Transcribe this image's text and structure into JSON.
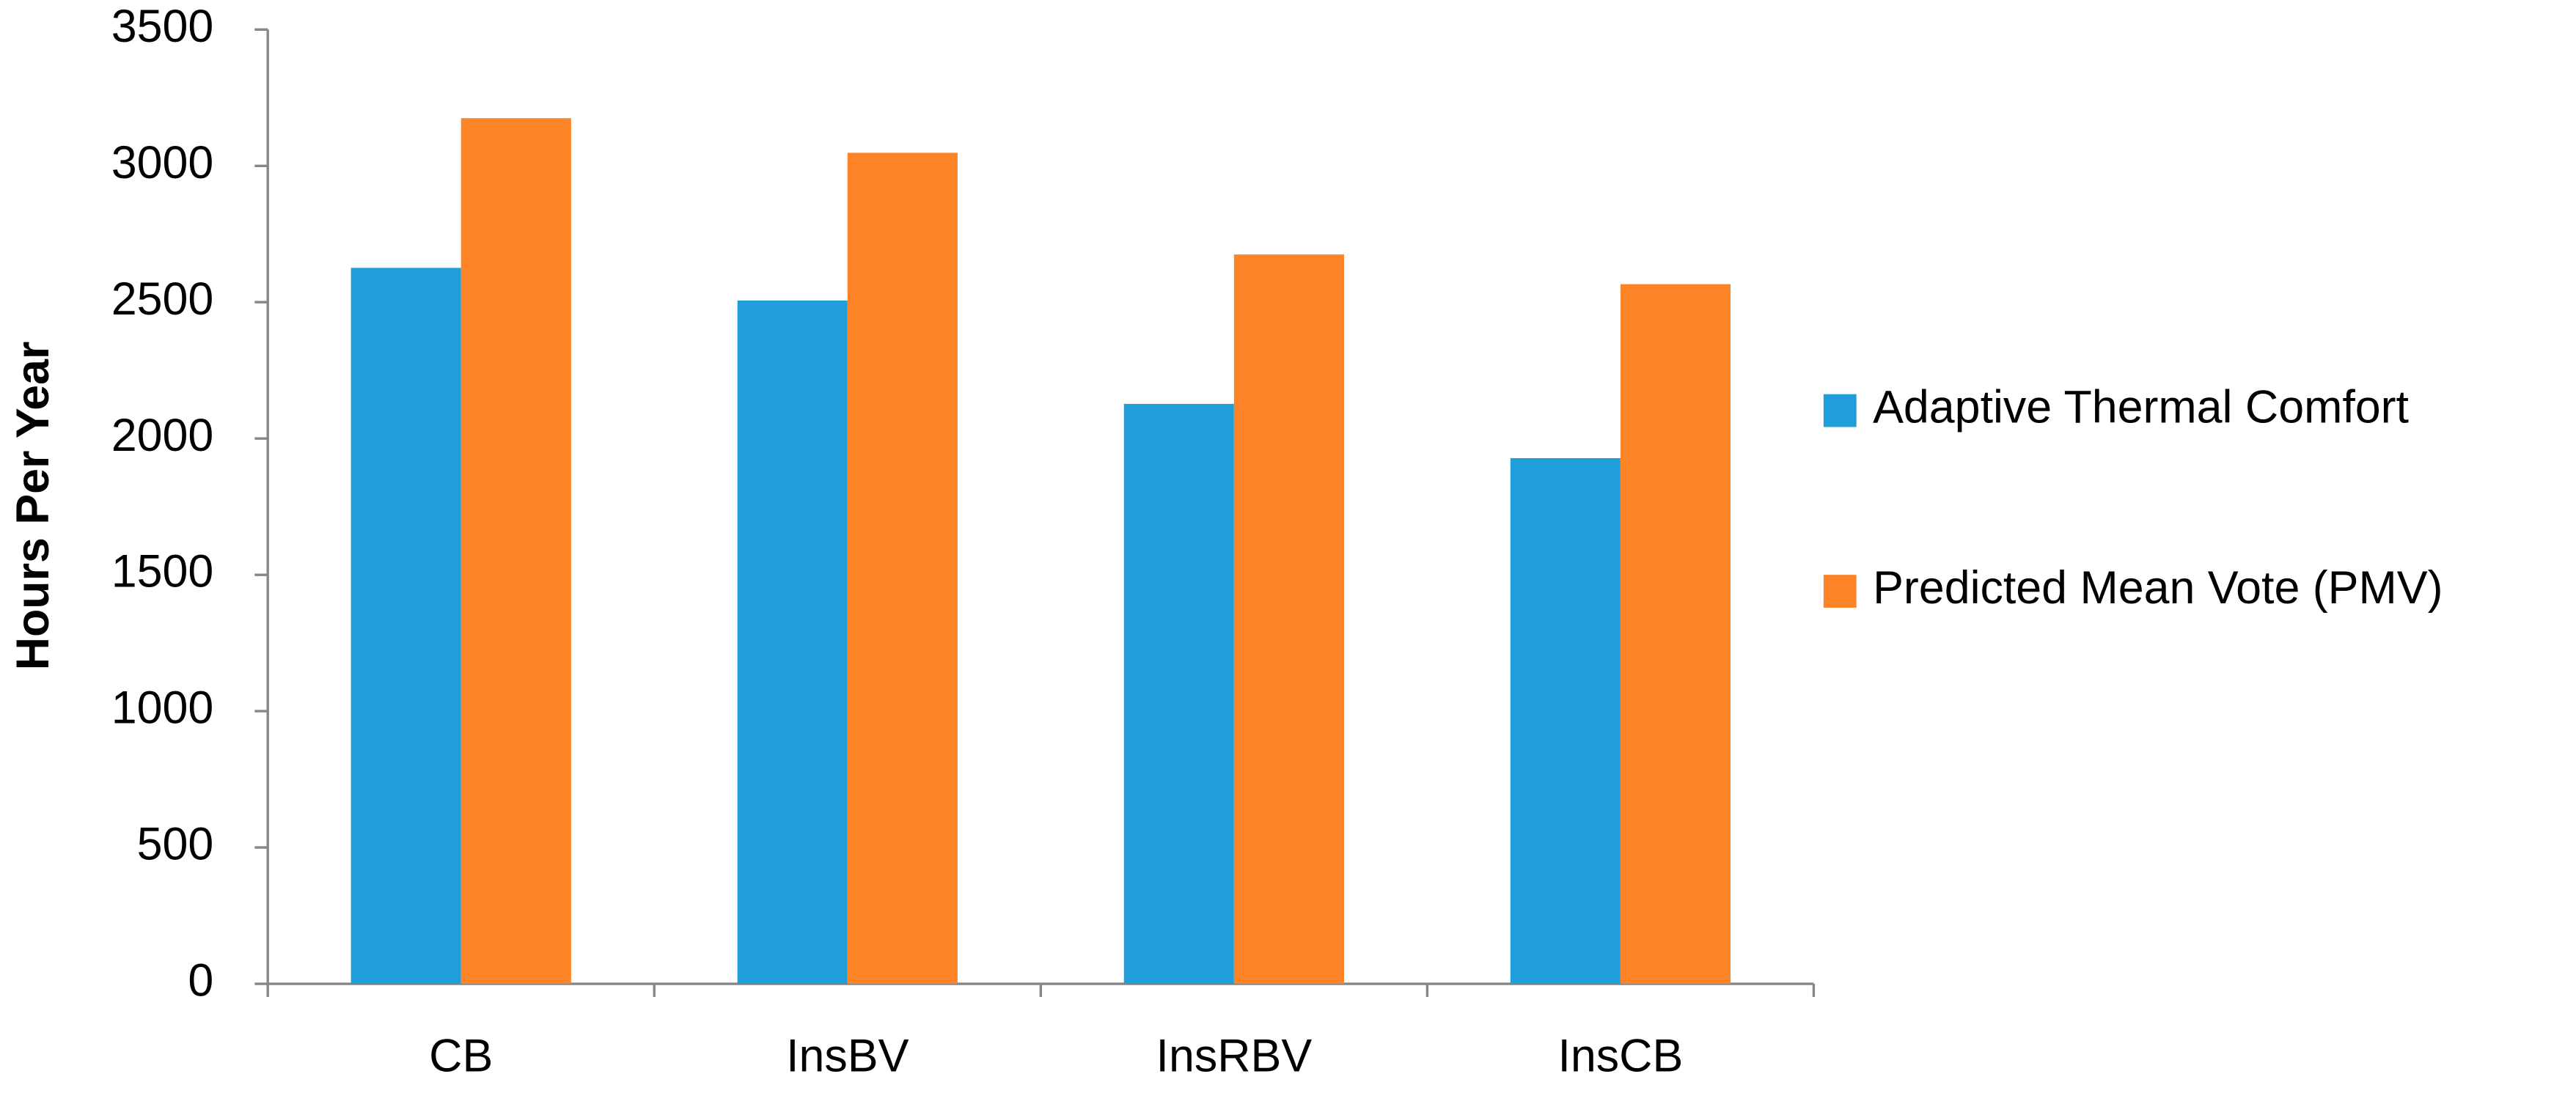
{
  "chart_data": {
    "type": "bar",
    "y_label": "Hours Per Year",
    "categories": [
      "CB",
      "InsBV",
      "InsRBV",
      "InsCB"
    ],
    "series": [
      {
        "name": "Adaptive Thermal Comfort",
        "color": "#1f9ed9",
        "values": [
          2626,
          2506,
          2127,
          1928
        ]
      },
      {
        "name": "Predicted Mean Vote (PMV)",
        "color": "#fd8327",
        "values": [
          3175,
          3048,
          2675,
          2566
        ]
      }
    ],
    "ylim": [
      0,
      3500
    ],
    "yticks": [
      0,
      500,
      1000,
      1500,
      2000,
      2500,
      3000,
      3500
    ],
    "legend": "right"
  }
}
